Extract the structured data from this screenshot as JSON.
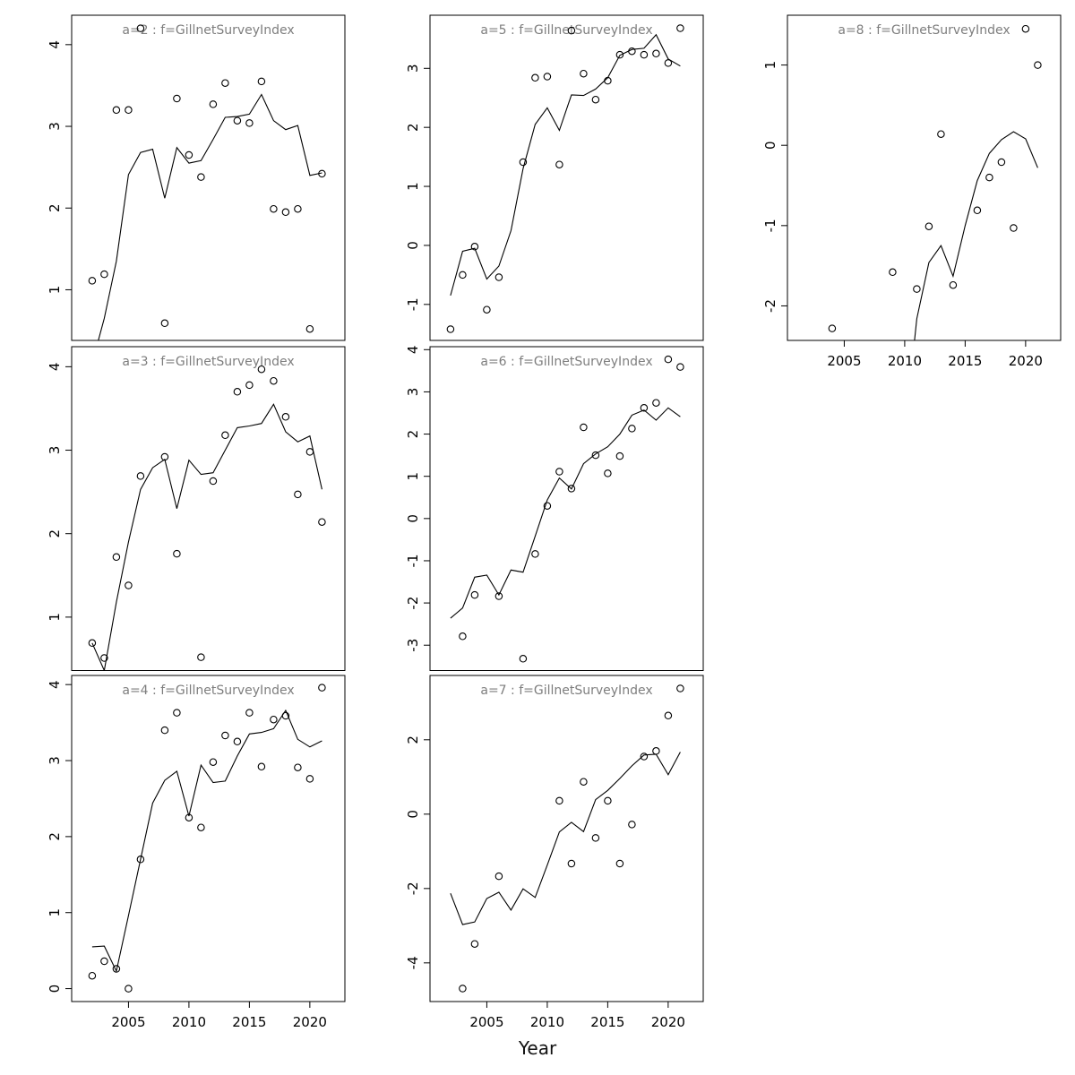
{
  "figure": {
    "xlabel": "Year",
    "background": "#ffffff",
    "axis_color": "#000000",
    "title_color": "#7e7e7e",
    "x_ticks": [
      2005,
      2010,
      2015,
      2020
    ],
    "x_range": [
      2000.3,
      2022.9
    ]
  },
  "chart_data": [
    {
      "id": "a2",
      "type": "scatter+line",
      "title": "a=2 : f=GillnetSurveyIndex",
      "row": 0,
      "col": 0,
      "ylim": [
        0.38,
        4.36
      ],
      "yticks": [
        1,
        2,
        3,
        4
      ],
      "show_x_axis": false,
      "points": {
        "years": [
          2002,
          2003,
          2004,
          2005,
          2006,
          2008,
          2009,
          2010,
          2011,
          2012,
          2013,
          2014,
          2015,
          2016,
          2017,
          2018,
          2019,
          2020,
          2021
        ],
        "values": [
          1.11,
          1.19,
          3.2,
          3.2,
          4.2,
          0.59,
          3.34,
          2.65,
          2.38,
          3.27,
          3.53,
          3.07,
          3.04,
          3.55,
          1.99,
          1.95,
          1.99,
          0.52,
          2.42
        ]
      },
      "line": {
        "years": [
          2002,
          2003,
          2004,
          2005,
          2006,
          2007,
          2008,
          2009,
          2010,
          2011,
          2012,
          2013,
          2014,
          2015,
          2016,
          2017,
          2018,
          2019,
          2020,
          2021
        ],
        "values": [
          0.1,
          0.65,
          1.35,
          2.41,
          2.68,
          2.72,
          2.12,
          2.74,
          2.55,
          2.58,
          2.84,
          3.11,
          3.12,
          3.15,
          3.39,
          3.07,
          2.96,
          3.01,
          2.4,
          2.43
        ]
      }
    },
    {
      "id": "a5",
      "type": "scatter+line",
      "title": "a=5 : f=GillnetSurveyIndex",
      "row": 0,
      "col": 1,
      "ylim": [
        -1.61,
        3.9
      ],
      "yticks": [
        -1,
        0,
        1,
        2,
        3
      ],
      "show_x_axis": false,
      "points": {
        "years": [
          2002,
          2003,
          2004,
          2005,
          2006,
          2008,
          2009,
          2010,
          2011,
          2012,
          2013,
          2014,
          2015,
          2016,
          2017,
          2018,
          2019,
          2020,
          2021
        ],
        "values": [
          -1.42,
          -0.5,
          -0.02,
          -1.09,
          -0.54,
          1.41,
          2.84,
          2.86,
          1.37,
          3.64,
          2.91,
          2.47,
          2.79,
          3.23,
          3.29,
          3.23,
          3.25,
          3.09,
          3.68
        ]
      },
      "line": {
        "years": [
          2002,
          2003,
          2004,
          2005,
          2006,
          2007,
          2008,
          2009,
          2010,
          2011,
          2012,
          2013,
          2014,
          2015,
          2016,
          2017,
          2018,
          2019,
          2020,
          2021
        ],
        "values": [
          -0.85,
          -0.1,
          -0.05,
          -0.57,
          -0.35,
          0.25,
          1.3,
          2.05,
          2.33,
          1.95,
          2.55,
          2.54,
          2.65,
          2.84,
          3.22,
          3.32,
          3.34,
          3.57,
          3.16,
          3.04
        ]
      }
    },
    {
      "id": "a8",
      "type": "scatter+line",
      "title": "a=8 : f=GillnetSurveyIndex",
      "row": 0,
      "col": 2,
      "ylim": [
        -2.43,
        1.62
      ],
      "yticks": [
        -2,
        -1,
        0,
        1
      ],
      "show_x_axis": true,
      "points": {
        "years": [
          2004,
          2009,
          2011,
          2012,
          2013,
          2014,
          2016,
          2017,
          2018,
          2019,
          2020,
          2021
        ],
        "values": [
          -2.28,
          -1.58,
          -1.79,
          -1.01,
          0.14,
          -1.74,
          -0.81,
          -0.4,
          -0.21,
          -1.03,
          1.45,
          1.0
        ]
      },
      "line": {
        "years": [
          2010,
          2011,
          2012,
          2013,
          2014,
          2015,
          2016,
          2017,
          2018,
          2019,
          2020,
          2021
        ],
        "values": [
          -3.6,
          -2.16,
          -1.46,
          -1.25,
          -1.63,
          -1.0,
          -0.44,
          -0.1,
          0.07,
          0.17,
          0.08,
          -0.28
        ]
      }
    },
    {
      "id": "a3",
      "type": "scatter+line",
      "title": "a=3 : f=GillnetSurveyIndex",
      "row": 1,
      "col": 0,
      "ylim": [
        0.36,
        4.24
      ],
      "yticks": [
        1,
        2,
        3,
        4
      ],
      "show_x_axis": false,
      "points": {
        "years": [
          2002,
          2003,
          2004,
          2005,
          2006,
          2008,
          2009,
          2011,
          2012,
          2013,
          2014,
          2015,
          2016,
          2017,
          2018,
          2019,
          2020,
          2021
        ],
        "values": [
          0.69,
          0.51,
          1.72,
          1.38,
          2.69,
          2.92,
          1.76,
          0.52,
          2.63,
          3.18,
          3.7,
          3.78,
          3.97,
          3.83,
          3.4,
          2.47,
          2.98,
          2.14
        ]
      },
      "line": {
        "years": [
          2002,
          2003,
          2004,
          2005,
          2006,
          2007,
          2008,
          2009,
          2010,
          2011,
          2012,
          2013,
          2014,
          2015,
          2016,
          2017,
          2018,
          2019,
          2020,
          2021
        ],
        "values": [
          0.69,
          0.36,
          1.18,
          1.9,
          2.53,
          2.79,
          2.89,
          2.3,
          2.88,
          2.71,
          2.73,
          3.0,
          3.27,
          3.29,
          3.32,
          3.55,
          3.22,
          3.1,
          3.17,
          2.53
        ]
      }
    },
    {
      "id": "a6",
      "type": "scatter+line",
      "title": "a=6 : f=GillnetSurveyIndex",
      "row": 1,
      "col": 1,
      "ylim": [
        -3.6,
        4.07
      ],
      "yticks": [
        -3,
        -2,
        -1,
        0,
        1,
        2,
        3,
        4
      ],
      "show_x_axis": false,
      "points": {
        "years": [
          2003,
          2004,
          2006,
          2008,
          2009,
          2010,
          2011,
          2012,
          2013,
          2014,
          2015,
          2016,
          2017,
          2018,
          2019,
          2020,
          2021
        ],
        "values": [
          -2.79,
          -1.81,
          -1.84,
          -3.32,
          -0.84,
          0.3,
          1.11,
          0.71,
          2.16,
          1.5,
          1.07,
          1.48,
          2.13,
          2.62,
          2.74,
          3.77,
          3.59
        ]
      },
      "line": {
        "years": [
          2002,
          2003,
          2004,
          2005,
          2006,
          2007,
          2008,
          2009,
          2010,
          2011,
          2012,
          2013,
          2014,
          2015,
          2016,
          2017,
          2018,
          2019,
          2020,
          2021
        ],
        "values": [
          -2.36,
          -2.12,
          -1.39,
          -1.34,
          -1.81,
          -1.22,
          -1.27,
          -0.42,
          0.44,
          0.96,
          0.7,
          1.3,
          1.53,
          1.7,
          2.0,
          2.45,
          2.57,
          2.33,
          2.62,
          2.41
        ]
      }
    },
    {
      "id": "a4",
      "type": "scatter+line",
      "title": "a=4 : f=GillnetSurveyIndex",
      "row": 2,
      "col": 0,
      "ylim": [
        -0.17,
        4.12
      ],
      "yticks": [
        0,
        1,
        2,
        3,
        4
      ],
      "show_x_axis": true,
      "points": {
        "years": [
          2002,
          2003,
          2004,
          2005,
          2006,
          2008,
          2009,
          2010,
          2011,
          2012,
          2013,
          2014,
          2015,
          2016,
          2017,
          2018,
          2019,
          2020,
          2021
        ],
        "values": [
          0.17,
          0.36,
          0.26,
          0.0,
          1.7,
          3.4,
          3.63,
          2.25,
          2.12,
          2.98,
          3.33,
          3.25,
          3.63,
          2.92,
          3.54,
          3.59,
          2.91,
          2.76,
          3.96
        ]
      },
      "line": {
        "years": [
          2002,
          2003,
          2004,
          2005,
          2006,
          2007,
          2008,
          2009,
          2010,
          2011,
          2012,
          2013,
          2014,
          2015,
          2016,
          2017,
          2018,
          2019,
          2020,
          2021
        ],
        "values": [
          0.55,
          0.56,
          0.23,
          0.96,
          1.7,
          2.44,
          2.74,
          2.86,
          2.27,
          2.94,
          2.71,
          2.73,
          3.06,
          3.35,
          3.37,
          3.42,
          3.66,
          3.28,
          3.18,
          3.26
        ]
      }
    },
    {
      "id": "a7",
      "type": "scatter+line",
      "title": "a=7 : f=GillnetSurveyIndex",
      "row": 2,
      "col": 1,
      "ylim": [
        -5.04,
        3.73
      ],
      "yticks": [
        -4,
        -2,
        0,
        2
      ],
      "show_x_axis": true,
      "points": {
        "years": [
          2003,
          2004,
          2006,
          2011,
          2012,
          2013,
          2014,
          2015,
          2016,
          2017,
          2018,
          2019,
          2020,
          2021
        ],
        "values": [
          -4.69,
          -3.49,
          -1.67,
          0.36,
          -1.33,
          0.87,
          -0.64,
          0.36,
          -1.33,
          -0.28,
          1.55,
          1.7,
          2.65,
          3.38
        ]
      },
      "line": {
        "years": [
          2002,
          2003,
          2004,
          2005,
          2006,
          2007,
          2008,
          2009,
          2010,
          2011,
          2012,
          2013,
          2014,
          2015,
          2016,
          2017,
          2018,
          2019,
          2020,
          2021
        ],
        "values": [
          -2.13,
          -2.97,
          -2.9,
          -2.27,
          -2.1,
          -2.58,
          -2.01,
          -2.24,
          -1.37,
          -0.48,
          -0.22,
          -0.47,
          0.39,
          0.64,
          0.96,
          1.3,
          1.59,
          1.61,
          1.06,
          1.67
        ]
      }
    }
  ]
}
